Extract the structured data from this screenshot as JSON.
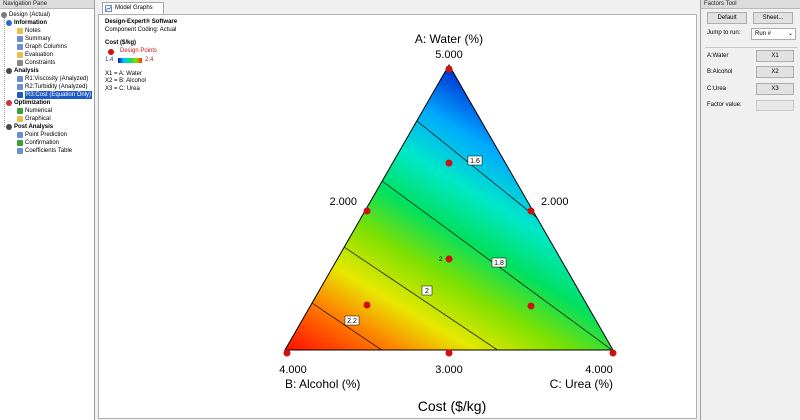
{
  "nav": {
    "title": "Navigation Pane",
    "items": [
      {
        "label": "Design (Actual)",
        "icon": "design-icon",
        "color": "#7a7a7a",
        "bold": false
      },
      {
        "label": "Information",
        "icon": "info-icon",
        "color": "#2a6ad4",
        "bold": true
      },
      {
        "label": "Notes",
        "icon": "folder-icon",
        "color": "#e6c04a",
        "bold": false
      },
      {
        "label": "Summary",
        "icon": "summary-icon",
        "color": "#6a8fcf",
        "bold": false
      },
      {
        "label": "Graph Columns",
        "icon": "graph-columns-icon",
        "color": "#6a8fcf",
        "bold": false
      },
      {
        "label": "Evaluation",
        "icon": "evaluation-icon",
        "color": "#e6c04a",
        "bold": false
      },
      {
        "label": "Constraints",
        "icon": "constraints-icon",
        "color": "#888888",
        "bold": false
      },
      {
        "label": "Analysis",
        "icon": "analysis-icon",
        "color": "#4a4a4a",
        "bold": true
      },
      {
        "label": "R1:Viscosity (Analyzed)",
        "icon": "analyzed-icon",
        "color": "#6a8fcf",
        "bold": false
      },
      {
        "label": "R2:Turbidity (Analyzed)",
        "icon": "analyzed-icon",
        "color": "#6a8fcf",
        "bold": false
      },
      {
        "label": "R3:Cost (Equation Only)",
        "icon": "equation-icon",
        "color": "#1f5bc4",
        "bold": false
      },
      {
        "label": "Optimization",
        "icon": "optimization-icon",
        "color": "#c03a3a",
        "bold": true
      },
      {
        "label": "Numerical",
        "icon": "numerical-icon",
        "color": "#3aa03a",
        "bold": false
      },
      {
        "label": "Graphical",
        "icon": "graphical-icon",
        "color": "#e6c04a",
        "bold": false
      },
      {
        "label": "Post Analysis",
        "icon": "post-analysis-icon",
        "color": "#4a4a4a",
        "bold": true
      },
      {
        "label": "Point Prediction",
        "icon": "point-prediction-icon",
        "color": "#6a8fcf",
        "bold": false
      },
      {
        "label": "Confirmation",
        "icon": "confirmation-icon",
        "color": "#3aa03a",
        "bold": false
      },
      {
        "label": "Coefficients Table",
        "icon": "coefficients-table-icon",
        "color": "#6a8fcf",
        "bold": false
      }
    ]
  },
  "tab": {
    "label": "Model Graphs"
  },
  "graph": {
    "software": "Design-Expert® Software",
    "coding": "Component Coding: Actual",
    "response": "Cost ($/kg)",
    "design_points_label": "Design Points",
    "scale_min": "1.4",
    "scale_max": "2.4",
    "x1": "X1 = A: Water",
    "x2": "X2 = B: Alcohol",
    "x3": "X3 = C: Urea",
    "top_title": "A: Water (%)",
    "top_value": "5.000",
    "left_mid_value": "2.000",
    "right_mid_value": "2.000",
    "bottom_left_value": "4.000",
    "bottom_mid_value": "3.000",
    "bottom_right_value": "4.000",
    "left_title": "B: Alcohol (%)",
    "right_title": "C: Urea (%)",
    "footer": "Cost ($/kg)",
    "contours": [
      "1.6",
      "1.8",
      "2",
      "2.2"
    ],
    "center_label": "2",
    "point_color": "#cc1111"
  },
  "factors": {
    "title": "Factors Tool",
    "default_label": "Default",
    "sheet_label": "Sheet...",
    "jump_label": "Jump to run:",
    "jump_value": "Run #",
    "a_label": "A:Water",
    "a_btn": "X1",
    "b_label": "B:Alcohol",
    "b_btn": "X2",
    "c_label": "C:Urea",
    "c_btn": "X3",
    "factor_value_label": "Factor value:"
  }
}
